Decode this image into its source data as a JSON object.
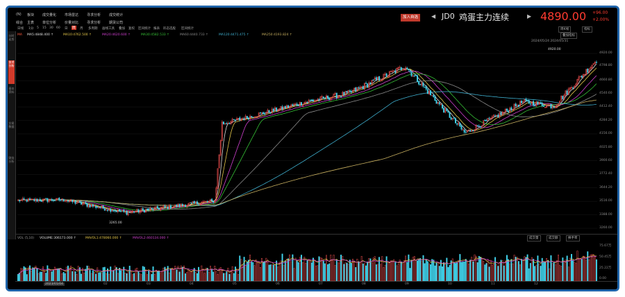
{
  "header": {
    "menu_row1": [
      "(N)",
      "板块",
      "成交量化",
      "市场雷达",
      "寻求分析",
      "成交统计"
    ],
    "menu_row2": [
      "综合",
      "主表",
      "单位分析",
      "价量对比",
      "寻求分析",
      "期货公司"
    ],
    "add_button": "加入自选",
    "symbol_code": "JD0",
    "symbol_name": "鸡蛋主力连续",
    "last_price": "4890.00",
    "change": "+96.00",
    "change_pct": "+2.00%",
    "nav_prev": "◀",
    "nav_next": "▶",
    "period_button": "周K线",
    "settings_button": "指标"
  },
  "sidebar": {
    "tabs": [
      "分时走势",
      "技术分析",
      "基本资料",
      "交易数据",
      "财务分析"
    ],
    "active_index": 1
  },
  "toolbar": {
    "items": [
      "日线",
      "1分",
      "5",
      "15",
      "30",
      "60",
      "日",
      "周",
      "月",
      "多周期",
      "画线工具",
      "叠加",
      "复权",
      "区间统计",
      "报表",
      "形态选股",
      "区间统计"
    ],
    "active_index": 7
  },
  "ma_row": {
    "indicator": "MA",
    "items": [
      {
        "label": "MA5:4848.400 ↑",
        "color": "#e0e0e0"
      },
      {
        "label": "MA10:4762.500 ↑",
        "color": "#e6c84a"
      },
      {
        "label": "MA20:4620.600 ↑",
        "color": "#d040d0"
      },
      {
        "label": "MA30:4582.533 ↑",
        "color": "#36c136"
      },
      {
        "label": "MA60:4440.733 ↑",
        "color": "#8a8a8a"
      },
      {
        "label": "MA120:4471.475 ↑",
        "color": "#3fb0d0"
      },
      {
        "label": "MA250:4193.824 ↑",
        "color": "#c8b060"
      }
    ]
  },
  "chart_info": {
    "right_button": "叠加指标",
    "date_readout": "2024/05/24 2024/05/31",
    "high_marker": "4920.00",
    "low_marker": "3265.00"
  },
  "colors": {
    "up": "#e04a4a",
    "down": "#40d0e8",
    "frame": "#1e63a8",
    "accent": "#d23a2a"
  },
  "volume_panel": {
    "label": "VOL (5,10)",
    "items": [
      {
        "label": "VOLUME:306173.000 ↑",
        "color": "#e0e0e0"
      },
      {
        "label": "MAVOL1:478060.000 ↑",
        "color": "#e6c84a"
      },
      {
        "label": "MAVOL2:460134.000 ↑",
        "color": "#d040d0"
      }
    ],
    "buttons": [
      "成交量",
      "成交额",
      "换手率"
    ],
    "axis_labels": [
      "75.67万",
      "50.45万",
      "25.22万",
      "0.00"
    ]
  },
  "x_axis": {
    "months": [
      "2023/01/04",
      "02",
      "03",
      "04",
      "05",
      "06",
      "07",
      "08",
      "09",
      "10",
      "11",
      "12"
    ]
  },
  "chart_data": {
    "type": "candlestick",
    "y_axis_labels": [
      "4920.00",
      "4798.80",
      "4660.80",
      "4540.60",
      "4412.40",
      "4284.20",
      "4156.00",
      "4025.80",
      "3900.60",
      "3772.40",
      "3644.20",
      "3516.00",
      "3388.00",
      "3260.00"
    ],
    "ylim": [
      3260,
      4920
    ],
    "segments": [
      {
        "count": 34,
        "start": 3525,
        "end": 3530,
        "noise": 18,
        "drift": 0
      },
      {
        "count": 40,
        "start": 3520,
        "end": 3410,
        "noise": 20,
        "drift": 0
      },
      {
        "count": 60,
        "start": 3410,
        "end": 3520,
        "noise": 20,
        "drift": 0
      },
      {
        "count": 6,
        "start": 3520,
        "end": 4255,
        "noise": 40,
        "drift": 0
      },
      {
        "count": 60,
        "start": 4255,
        "end": 4470,
        "noise": 22,
        "drift": 0
      },
      {
        "count": 25,
        "start": 4470,
        "end": 4540,
        "noise": 25,
        "drift": 0
      },
      {
        "count": 40,
        "start": 4540,
        "end": 4800,
        "noise": 30,
        "drift": 0
      },
      {
        "count": 40,
        "start": 4780,
        "end": 4170,
        "noise": 30,
        "drift": 0
      },
      {
        "count": 40,
        "start": 4170,
        "end": 4460,
        "noise": 25,
        "drift": 0
      },
      {
        "count": 20,
        "start": 4460,
        "end": 4420,
        "noise": 25,
        "drift": 0
      },
      {
        "count": 30,
        "start": 4420,
        "end": 4860,
        "noise": 30,
        "drift": 0
      }
    ]
  }
}
